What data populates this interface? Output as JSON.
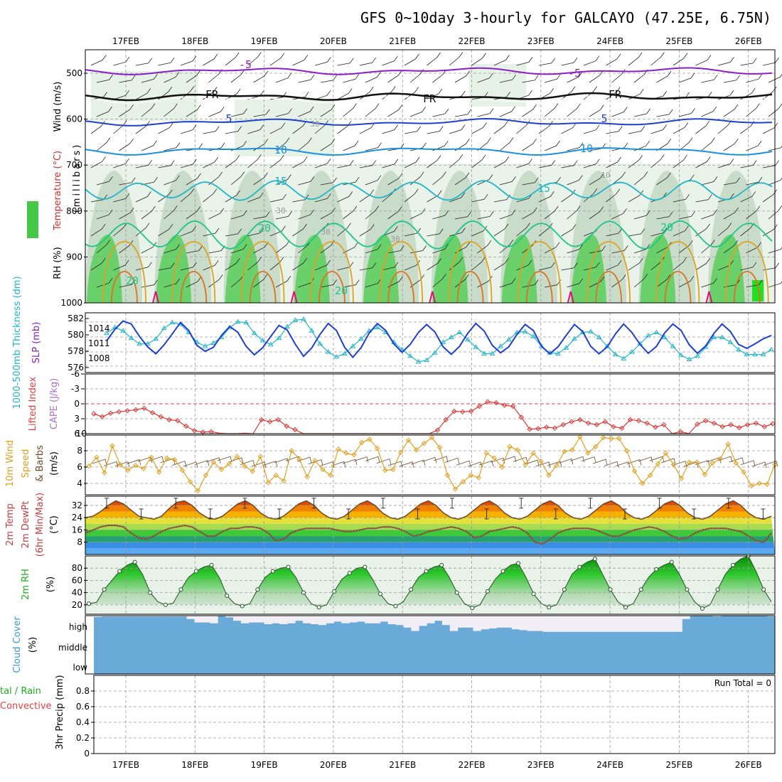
{
  "title": "GFS 0~10day 3-hourly for GALCAYO (47.25E, 6.75N)",
  "dates": [
    "17FEB",
    "18FEB",
    "19FEB",
    "20FEB",
    "21FEB",
    "22FEB",
    "23FEB",
    "24FEB",
    "25FEB",
    "26FEB"
  ],
  "colors": {
    "purple": "#8b1fc7",
    "black": "#111111",
    "blue": "#1f3fd1",
    "lightblue": "#1b8fe0",
    "teal": "#22b5c8",
    "seagreen": "#1fc48a",
    "orange": "#e0a020",
    "magenta": "#e0107a",
    "green": "#5fd35f",
    "lightgreen": "#d8efd8",
    "brown": "#6b4a2a",
    "red": "#d83a3a",
    "cloud": "#6aaad8",
    "cloudfree": "#f1eef6"
  },
  "upper_air": {
    "ylabels": [
      {
        "text": "Wind (m/s)",
        "color": "#000000"
      },
      {
        "text": "Temperature (°C)",
        "color": "#d03030"
      },
      {
        "text": "RH (%)",
        "color": "#000000"
      },
      {
        "text": "(millibars)",
        "color": "#000000"
      }
    ],
    "yticks": [
      "500",
      "600",
      "700",
      "800",
      "900",
      "1000"
    ],
    "contour_labels": [
      "-5",
      "-5",
      "FR",
      "FR",
      "FR",
      "5",
      "5",
      "10",
      "10",
      "15",
      "15",
      "20",
      "20",
      "20",
      "20",
      "30",
      "30",
      "30",
      "30",
      "10"
    ]
  },
  "thickness": {
    "ylabel_left": "1000-500mb Thickness (dm)",
    "ylabel_right": "SLP (mb)",
    "left_ticks": [
      "582",
      "580",
      "578",
      "576"
    ],
    "right_ticks": [
      "1014",
      "1011",
      "1008"
    ]
  },
  "lifted": {
    "ylabel_left": "Lifted Index",
    "ylabel_right": "CAPE (J/kg)",
    "left_ticks": [
      "-6",
      "-3",
      "0",
      "3",
      "6"
    ],
    "right_tick": "10"
  },
  "wind10": {
    "ylabel_1": "10m Wind",
    "ylabel_2": "Speed",
    "ylabel_3": "& Barbs",
    "unit": "(m/s)",
    "ticks": [
      "8",
      "6",
      "4"
    ]
  },
  "temp2m": {
    "ylabel_1": "2m Temp",
    "ylabel_2": "2m DewPt",
    "ylabel_3": "(6hr Min/Max)",
    "unit": "(°C)",
    "ticks": [
      "32",
      "24",
      "16",
      "8"
    ]
  },
  "rh2m": {
    "ylabel": "2m RH",
    "unit": "(%)",
    "ticks": [
      "80",
      "60",
      "40",
      "20"
    ]
  },
  "cloud": {
    "ylabel": "Cloud Cover",
    "unit": "(%)",
    "levels": [
      "high",
      "middle",
      "low"
    ]
  },
  "precip": {
    "ylabel_1": "tal / Rain",
    "ylabel_2": "Convective",
    "ylabel_3": "3hr Precip (mm)",
    "run_total": "Run Total = 0",
    "ticks": [
      "0.8",
      "0.6",
      "0.4",
      "0.2",
      "0"
    ]
  },
  "chart_data": [
    {
      "type": "line",
      "title": "1000-500mb Thickness (dm) / SLP (mb)",
      "x_unit": "3-hourly steps from 16FEB 12Z",
      "series": [
        {
          "name": "1000-500mb Thickness (dm)",
          "color": "#22b5c8",
          "values": [
            580.2,
            580.9,
            580.5,
            579.6,
            578.9,
            578.9,
            579.5,
            580.8,
            581.5,
            581.3,
            580.3,
            579.1,
            578.6,
            579.0,
            579.7,
            580.9,
            581.6,
            581.5,
            580.2,
            579.3,
            578.8,
            579.6,
            581.0,
            581.8,
            581.9,
            580.5,
            578.9,
            577.9,
            577.3,
            577.7,
            578.6,
            579.5,
            580.5,
            580.9,
            580.3,
            579.1,
            578.2,
            577.4,
            576.7,
            576.9,
            577.8,
            579.1,
            579.7,
            580.3,
            579.4,
            578.5,
            577.7,
            577.7,
            578.6,
            579.4,
            580.3,
            580.4,
            579.8,
            578.6,
            577.8,
            577.7,
            578.4,
            579.5,
            580.3,
            580.4,
            579.7,
            578.6,
            577.6,
            577.1,
            577.9,
            578.9,
            579.9,
            580.3,
            579.7,
            578.6,
            577.5,
            577.0,
            577.4,
            578.5,
            579.7,
            579.7,
            579.1,
            578.2,
            577.6,
            577.6,
            577.6,
            578.2
          ]
        },
        {
          "name": "SLP (mb)",
          "color": "#1f3fd1",
          "values": [
            1011.5,
            1013.8,
            1015.5,
            1014.9,
            1012.4,
            1010.3,
            1008.9,
            1010.7,
            1012.9,
            1015.2,
            1013.6,
            1010.6,
            1009.4,
            1010.2,
            1012.6,
            1014.4,
            1013.2,
            1010.4,
            1008.7,
            1010.1,
            1012.4,
            1014.6,
            1013.7,
            1010.8,
            1008.4,
            1010.1,
            1012.8,
            1015.0,
            1013.6,
            1010.2,
            1008.2,
            1010.1,
            1013.1,
            1015.0,
            1013.6,
            1010.9,
            1009.2,
            1010.8,
            1013.2,
            1014.8,
            1013.3,
            1010.3,
            1008.8,
            1010.4,
            1013.0,
            1015.0,
            1013.5,
            1010.6,
            1009.1,
            1010.3,
            1012.8,
            1014.8,
            1013.6,
            1010.4,
            1008.9,
            1010.3,
            1012.6,
            1014.8,
            1013.4,
            1010.4,
            1008.9,
            1010.3,
            1012.9,
            1014.9,
            1013.2,
            1010.8,
            1009.0,
            1010.4,
            1013.1,
            1014.9,
            1013.6,
            1010.7,
            1009.0,
            1010.5,
            1013.0,
            1014.9,
            1013.4,
            1010.8,
            1010.0,
            1010.9,
            1011.9,
            1012.6
          ]
        }
      ],
      "ylim_left": [
        575,
        583
      ],
      "ylim_right": [
        1006,
        1017
      ]
    },
    {
      "type": "line",
      "title": "Lifted Index",
      "series": [
        {
          "name": "Lifted Index",
          "color": "#d83a3a",
          "values": [
            2.0,
            2.6,
            1.9,
            1.6,
            1.4,
            1.2,
            0.9,
            1.8,
            2.6,
            3.2,
            3.4,
            4.5,
            5.4,
            5.7,
            5.6,
            5.9,
            6.0,
            6.0,
            5.9,
            6.0,
            3.2,
            3.6,
            3.2,
            4.5,
            5.2,
            6.0,
            6.0,
            6.0,
            6.0,
            6.0,
            6.0,
            6.0,
            6.0,
            6.0,
            6.0,
            6.0,
            6.0,
            6.0,
            6.0,
            6.0,
            6.0,
            5.3,
            3.2,
            1.5,
            1.6,
            1.5,
            0.5,
            -0.4,
            -0.2,
            0.3,
            0.5,
            2.7,
            5.1,
            5.0,
            4.7,
            4.9,
            4.2,
            3.6,
            3.2,
            3.9,
            4.2,
            3.6,
            4.6,
            4.9,
            3.2,
            3.4,
            3.9,
            4.7,
            4.2,
            6.0,
            5.6,
            6.0,
            4.1,
            3.4,
            3.9,
            4.6,
            4.2,
            4.8,
            4.2,
            3.9,
            4.6,
            4.0
          ]
        }
      ],
      "ylim": [
        6,
        -6
      ]
    },
    {
      "type": "line",
      "title": "10m Wind Speed (m/s)",
      "series": [
        {
          "name": "10m Wind Speed",
          "color": "#e0a020",
          "values": [
            6.1,
            7.2,
            5.3,
            8.6,
            6.3,
            5.6,
            6.2,
            5.8,
            7.2,
            5.4,
            7.1,
            6.9,
            5.6,
            4.2,
            3.1,
            5.0,
            6.6,
            5.7,
            6.4,
            7.3,
            6.1,
            5.5,
            7.3,
            4.1,
            5.0,
            4.3,
            8.0,
            7.0,
            4.8,
            6.8,
            5.7,
            5.0,
            8.2,
            7.7,
            7.5,
            9.0,
            9.4,
            8.3,
            5.6,
            5.7,
            7.8,
            9.3,
            8.1,
            8.9,
            9.6,
            8.4,
            5.0,
            3.3,
            4.2,
            5.0,
            4.7,
            7.7,
            7.1,
            6.0,
            8.5,
            8.1,
            6.3,
            7.7,
            6.7,
            5.0,
            6.2,
            7.9,
            8.1,
            9.7,
            7.7,
            8.5,
            9.6,
            9.5,
            9.5,
            8.0,
            5.5,
            4.0,
            5.0,
            6.4,
            7.7,
            6.3,
            4.6,
            6.6,
            6.6,
            5.1,
            6.5,
            7.0,
            8.8,
            6.5,
            5.4,
            3.7,
            4.0,
            3.9,
            6.3
          ]
        }
      ],
      "ylim": [
        2.5,
        10
      ]
    },
    {
      "type": "area",
      "title": "2m Temp / 2m DewPt (°C)",
      "series": [
        {
          "name": "2m Temp",
          "color": "#6b4a2a",
          "values": [
            24,
            25,
            28,
            32,
            35,
            33,
            29,
            25,
            24,
            23,
            25,
            30,
            34,
            35,
            32,
            27,
            24,
            23,
            25,
            29,
            33,
            35,
            32,
            27,
            24,
            23,
            25,
            29,
            33,
            35,
            32,
            27,
            24,
            23,
            25,
            29,
            33,
            35,
            32,
            27,
            24,
            23,
            25,
            29,
            33,
            35,
            32,
            27,
            24,
            23,
            25,
            29,
            33,
            35,
            32,
            27,
            24,
            23,
            25,
            29,
            33,
            35,
            32,
            27,
            24,
            23,
            25,
            29,
            33,
            35,
            32,
            27,
            24,
            23,
            25,
            29,
            33,
            35,
            32,
            27,
            24,
            23,
            25,
            29,
            33,
            35,
            32,
            27,
            24,
            23,
            25
          ]
        },
        {
          "name": "2m DewPt",
          "color": "#b02020",
          "values": [
            14,
            16,
            18,
            19,
            19,
            18,
            14,
            11,
            10,
            12,
            15,
            17,
            18,
            19,
            18,
            15,
            12,
            12,
            15,
            17,
            17,
            18,
            18,
            17,
            14,
            9,
            10,
            14,
            16,
            17,
            17,
            17,
            17,
            16,
            15,
            15,
            16,
            17,
            17,
            18,
            18,
            17,
            15,
            12,
            13,
            15,
            16,
            17,
            18,
            17,
            15,
            11,
            12,
            15,
            16,
            17,
            18,
            17,
            14,
            8,
            7,
            10,
            14,
            16,
            17,
            17,
            17,
            16,
            14,
            12,
            12,
            14,
            16,
            17,
            18,
            17,
            15,
            12,
            10,
            11,
            14,
            16,
            17,
            17,
            17,
            16,
            15,
            12,
            9,
            8,
            14
          ]
        }
      ],
      "ylim": [
        0,
        38
      ]
    },
    {
      "type": "area",
      "title": "2m RH (%)",
      "series": [
        {
          "name": "2m RH",
          "color": "#1eae1e",
          "values": [
            22,
            24,
            45,
            60,
            75,
            85,
            90,
            70,
            40,
            25,
            20,
            23,
            45,
            65,
            75,
            82,
            85,
            65,
            35,
            22,
            18,
            22,
            45,
            65,
            75,
            80,
            82,
            65,
            40,
            22,
            16,
            20,
            42,
            62,
            72,
            80,
            82,
            62,
            38,
            22,
            18,
            25,
            45,
            65,
            75,
            82,
            85,
            65,
            40,
            22,
            15,
            20,
            42,
            62,
            75,
            85,
            88,
            65,
            38,
            22,
            16,
            20,
            45,
            70,
            82,
            90,
            95,
            70,
            45,
            25,
            16,
            22,
            45,
            65,
            78,
            85,
            90,
            70,
            45,
            25,
            14,
            20,
            45,
            70,
            85,
            95,
            100,
            75,
            45,
            25
          ]
        }
      ],
      "ylim": [
        10,
        100
      ]
    },
    {
      "type": "bar",
      "title": "Cloud Cover (%)",
      "series": [
        {
          "name": "High cloud",
          "color": "#6aaad8",
          "values": [
            92,
            95,
            95,
            95,
            95,
            95,
            95,
            95,
            95,
            95,
            95,
            95,
            80,
            60,
            60,
            55,
            100,
            90,
            70,
            55,
            60,
            60,
            50,
            55,
            50,
            55,
            70,
            55,
            50,
            45,
            55,
            65,
            55,
            60,
            65,
            55,
            55,
            65,
            50,
            45,
            30,
            10,
            40,
            55,
            70,
            45,
            10,
            30,
            30,
            10,
            20,
            25,
            30,
            30,
            20,
            15,
            10,
            10,
            5,
            5,
            5,
            5,
            5,
            5,
            5,
            5,
            5,
            5,
            5,
            5,
            5,
            5,
            5,
            5,
            5,
            5,
            80,
            100,
            100,
            100,
            95,
            100,
            100,
            100,
            100,
            100,
            100,
            95
          ]
        }
      ],
      "ylim": [
        0,
        100
      ]
    },
    {
      "type": "bar",
      "title": "3hr Precip (mm)",
      "series": [
        {
          "name": "Total / Rain",
          "color": "#1eae1e",
          "values": [
            0,
            0,
            0,
            0,
            0,
            0,
            0,
            0,
            0,
            0
          ]
        }
      ],
      "ylim": [
        0,
        1
      ]
    }
  ]
}
